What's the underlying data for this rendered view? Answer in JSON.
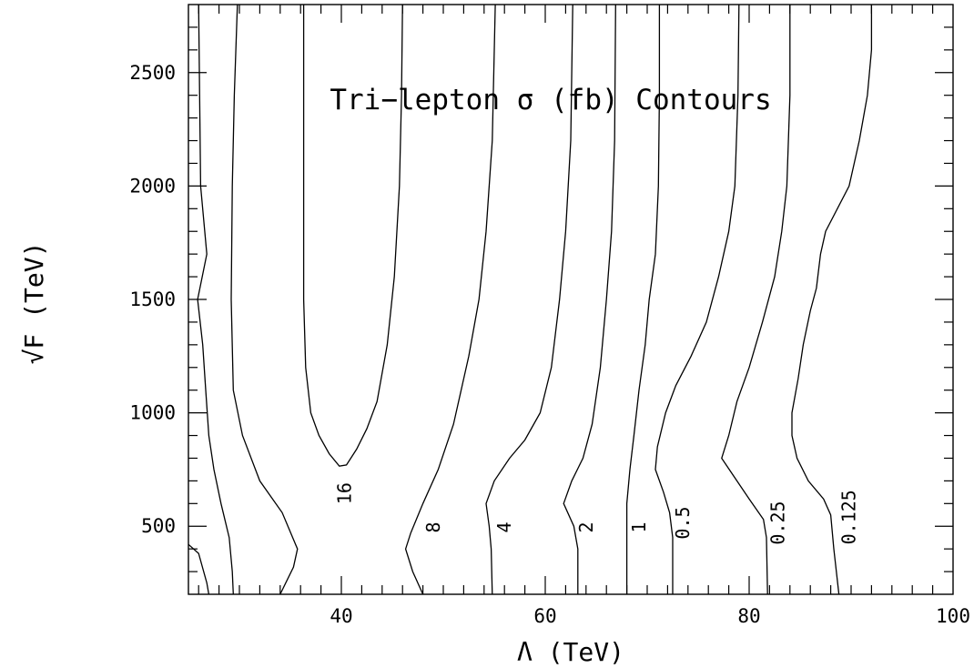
{
  "chart_data": {
    "type": "line",
    "title": "Tri−lepton σ (fb) Contours",
    "xlabel": "Λ (TeV)",
    "ylabel": "√F (TeV)",
    "xlim": [
      25,
      100
    ],
    "ylim": [
      200,
      2800
    ],
    "x_ticks": [
      40,
      60,
      80,
      100
    ],
    "y_ticks": [
      500,
      1000,
      1500,
      2000,
      2500
    ],
    "x_minor_step": 2,
    "y_minor_step": 100,
    "grid": false,
    "series": [
      {
        "name": "16",
        "label": "16",
        "label_at": [
          40.3,
          645
        ],
        "points": [
          [
            34.0,
            200
          ],
          [
            35.3,
            320
          ],
          [
            35.7,
            400
          ],
          [
            34.2,
            560
          ],
          [
            32.0,
            700
          ],
          [
            30.3,
            900
          ],
          [
            29.4,
            1100
          ],
          [
            29.2,
            1500
          ],
          [
            29.3,
            2000
          ],
          [
            29.5,
            2400
          ],
          [
            29.8,
            2800
          ],
          null,
          [
            36.3,
            2800
          ],
          [
            36.3,
            2400
          ],
          [
            36.3,
            2000
          ],
          [
            36.3,
            1500
          ],
          [
            36.5,
            1200
          ],
          [
            37.0,
            1000
          ],
          [
            37.8,
            900
          ],
          [
            38.8,
            820
          ],
          [
            39.8,
            765
          ],
          [
            40.5,
            770
          ],
          [
            41.5,
            840
          ],
          [
            42.5,
            930
          ],
          [
            43.5,
            1050
          ],
          [
            44.5,
            1300
          ],
          [
            45.2,
            1600
          ],
          [
            45.7,
            2000
          ],
          [
            45.9,
            2400
          ],
          [
            46.0,
            2800
          ]
        ]
      },
      {
        "name": "8",
        "label": "8",
        "label_at": [
          49.0,
          495
        ],
        "points": [
          [
            48.0,
            200
          ],
          [
            47.0,
            300
          ],
          [
            46.3,
            400
          ],
          [
            46.8,
            470
          ],
          [
            48.0,
            600
          ],
          [
            49.5,
            750
          ],
          [
            51.0,
            950
          ],
          [
            52.5,
            1250
          ],
          [
            53.5,
            1500
          ],
          [
            54.2,
            1800
          ],
          [
            54.8,
            2200
          ],
          [
            55.1,
            2800
          ]
        ]
      },
      {
        "name": "4",
        "label": "4",
        "label_at": [
          56.0,
          495
        ],
        "points": [
          [
            54.8,
            200
          ],
          [
            54.7,
            400
          ],
          [
            54.5,
            500
          ],
          [
            54.2,
            600
          ],
          [
            55.0,
            700
          ],
          [
            56.5,
            800
          ],
          [
            58.0,
            880
          ],
          [
            59.5,
            1000
          ],
          [
            60.6,
            1200
          ],
          [
            61.4,
            1500
          ],
          [
            62.0,
            1800
          ],
          [
            62.5,
            2200
          ],
          [
            62.7,
            2800
          ]
        ]
      },
      {
        "name": "2",
        "label": "2",
        "label_at": [
          64.0,
          495
        ],
        "points": [
          [
            63.2,
            200
          ],
          [
            63.2,
            400
          ],
          [
            62.8,
            500
          ],
          [
            61.8,
            600
          ],
          [
            62.6,
            700
          ],
          [
            63.7,
            800
          ],
          [
            64.6,
            950
          ],
          [
            65.4,
            1200
          ],
          [
            66.0,
            1500
          ],
          [
            66.5,
            1800
          ],
          [
            66.8,
            2200
          ],
          [
            66.9,
            2800
          ]
        ]
      },
      {
        "name": "1",
        "label": "1",
        "label_at": [
          69.2,
          495
        ],
        "points": [
          [
            68.0,
            200
          ],
          [
            68.0,
            400
          ],
          [
            68.0,
            500
          ],
          [
            68.0,
            600
          ],
          [
            68.3,
            750
          ],
          [
            68.7,
            900
          ],
          [
            69.2,
            1100
          ],
          [
            69.8,
            1300
          ],
          [
            70.2,
            1500
          ],
          [
            70.8,
            1700
          ],
          [
            71.1,
            2000
          ],
          [
            71.2,
            2400
          ],
          [
            71.2,
            2800
          ]
        ]
      },
      {
        "name": "0.5",
        "label": "0.5",
        "label_at": [
          73.5,
          515
        ],
        "points": [
          [
            72.5,
            200
          ],
          [
            72.5,
            450
          ],
          [
            72.2,
            560
          ],
          [
            71.6,
            650
          ],
          [
            70.8,
            750
          ],
          [
            71.0,
            850
          ],
          [
            71.8,
            1000
          ],
          [
            72.8,
            1120
          ],
          [
            74.3,
            1250
          ],
          [
            75.8,
            1400
          ],
          [
            77.0,
            1600
          ],
          [
            78.0,
            1800
          ],
          [
            78.6,
            2000
          ],
          [
            78.9,
            2400
          ],
          [
            79.0,
            2800
          ]
        ]
      },
      {
        "name": "0.25",
        "label": "0.25",
        "label_at": [
          82.8,
          515
        ],
        "points": [
          [
            81.8,
            200
          ],
          [
            81.7,
            450
          ],
          [
            81.4,
            530
          ],
          [
            80.0,
            620
          ],
          [
            78.5,
            720
          ],
          [
            77.3,
            800
          ],
          [
            78.0,
            900
          ],
          [
            78.8,
            1050
          ],
          [
            80.0,
            1200
          ],
          [
            81.3,
            1400
          ],
          [
            82.5,
            1600
          ],
          [
            83.2,
            1800
          ],
          [
            83.7,
            2000
          ],
          [
            84.0,
            2400
          ],
          [
            84.0,
            2800
          ]
        ]
      },
      {
        "name": "0.125",
        "label": "0.125",
        "label_at": [
          89.8,
          540
        ],
        "points": [
          [
            88.8,
            200
          ],
          [
            88.3,
            400
          ],
          [
            88.0,
            550
          ],
          [
            87.3,
            620
          ],
          [
            85.8,
            700
          ],
          [
            84.7,
            800
          ],
          [
            84.2,
            900
          ],
          [
            84.2,
            1000
          ],
          [
            84.8,
            1150
          ],
          [
            85.3,
            1300
          ],
          [
            86.0,
            1450
          ],
          [
            86.6,
            1550
          ],
          [
            87.0,
            1700
          ],
          [
            87.5,
            1800
          ],
          [
            89.8,
            2000
          ],
          [
            90.8,
            2200
          ],
          [
            91.6,
            2400
          ],
          [
            92.0,
            2600
          ],
          [
            92.0,
            2800
          ]
        ]
      },
      {
        "name": "",
        "label": "",
        "points": [
          [
            25.0,
            420
          ],
          [
            26.0,
            380
          ],
          [
            26.8,
            250
          ],
          [
            27.0,
            200
          ]
        ]
      },
      {
        "name": "",
        "label": "",
        "points": [
          [
            26.0,
            2800
          ],
          [
            26.1,
            2400
          ],
          [
            26.2,
            2000
          ],
          [
            26.8,
            1700
          ],
          [
            25.9,
            1500
          ],
          [
            26.4,
            1300
          ],
          [
            26.7,
            1100
          ],
          [
            27.0,
            900
          ],
          [
            27.5,
            750
          ],
          [
            28.2,
            600
          ],
          [
            29.0,
            450
          ],
          [
            29.3,
            300
          ],
          [
            29.4,
            200
          ]
        ]
      }
    ]
  }
}
